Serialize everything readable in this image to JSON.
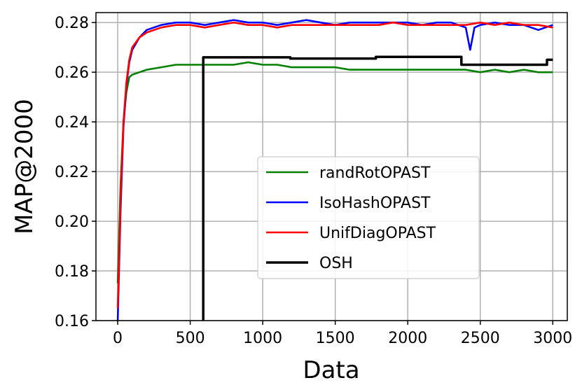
{
  "chart_data": {
    "type": "line",
    "title": "",
    "xlabel": "Data",
    "ylabel": "MAP@2000",
    "xlim": [
      -150,
      3100
    ],
    "ylim": [
      0.16,
      0.284
    ],
    "xticks": [
      0,
      500,
      1000,
      1500,
      2000,
      2500,
      3000
    ],
    "xtick_labels": [
      "0",
      "500",
      "1000",
      "1500",
      "2000",
      "2500",
      "3000"
    ],
    "yticks": [
      0.16,
      0.18,
      0.2,
      0.22,
      0.24,
      0.26,
      0.28
    ],
    "ytick_labels": [
      "0.16",
      "0.18",
      "0.20",
      "0.22",
      "0.24",
      "0.26",
      "0.28"
    ],
    "grid": true,
    "legend_position": "lower-right",
    "series": [
      {
        "name": "randRotOPAST",
        "color": "#008000",
        "x": [
          0,
          20,
          40,
          60,
          80,
          100,
          150,
          200,
          300,
          400,
          500,
          600,
          700,
          800,
          900,
          1000,
          1100,
          1200,
          1300,
          1400,
          1500,
          1600,
          1700,
          1800,
          1900,
          2000,
          2100,
          2200,
          2300,
          2400,
          2500,
          2600,
          2700,
          2800,
          2900,
          3000
        ],
        "y": [
          0.175,
          0.215,
          0.24,
          0.252,
          0.258,
          0.259,
          0.26,
          0.261,
          0.262,
          0.263,
          0.263,
          0.263,
          0.263,
          0.263,
          0.264,
          0.263,
          0.263,
          0.262,
          0.262,
          0.262,
          0.262,
          0.261,
          0.261,
          0.261,
          0.261,
          0.261,
          0.261,
          0.261,
          0.261,
          0.261,
          0.26,
          0.261,
          0.26,
          0.261,
          0.26,
          0.26
        ]
      },
      {
        "name": "IsoHashOPAST",
        "color": "#0000ff",
        "x": [
          0,
          20,
          40,
          60,
          80,
          100,
          150,
          200,
          300,
          400,
          500,
          600,
          700,
          800,
          900,
          1000,
          1100,
          1200,
          1300,
          1400,
          1500,
          1600,
          1700,
          1800,
          1900,
          2000,
          2100,
          2200,
          2300,
          2400,
          2430,
          2460,
          2500,
          2600,
          2700,
          2800,
          2900,
          3000
        ],
        "y": [
          0.16,
          0.205,
          0.238,
          0.255,
          0.264,
          0.269,
          0.274,
          0.277,
          0.279,
          0.28,
          0.28,
          0.279,
          0.28,
          0.281,
          0.28,
          0.28,
          0.279,
          0.28,
          0.281,
          0.28,
          0.279,
          0.28,
          0.28,
          0.28,
          0.28,
          0.28,
          0.279,
          0.28,
          0.28,
          0.278,
          0.269,
          0.278,
          0.279,
          0.28,
          0.279,
          0.279,
          0.277,
          0.279
        ]
      },
      {
        "name": "UnifDiagOPAST",
        "color": "#ff0000",
        "x": [
          0,
          20,
          40,
          60,
          80,
          100,
          150,
          200,
          300,
          400,
          500,
          600,
          700,
          800,
          900,
          1000,
          1100,
          1200,
          1300,
          1400,
          1500,
          1600,
          1700,
          1800,
          1900,
          2000,
          2100,
          2200,
          2300,
          2400,
          2500,
          2600,
          2700,
          2800,
          2900,
          3000
        ],
        "y": [
          0.165,
          0.21,
          0.24,
          0.256,
          0.265,
          0.27,
          0.274,
          0.276,
          0.278,
          0.279,
          0.279,
          0.278,
          0.279,
          0.28,
          0.279,
          0.279,
          0.278,
          0.279,
          0.279,
          0.279,
          0.279,
          0.279,
          0.279,
          0.279,
          0.28,
          0.279,
          0.279,
          0.279,
          0.279,
          0.279,
          0.28,
          0.279,
          0.28,
          0.279,
          0.279,
          0.278
        ]
      },
      {
        "name": "OSH",
        "color": "#000000",
        "x": [
          590,
          590,
          1190,
          1190,
          1780,
          1780,
          2370,
          2370,
          2960,
          2960,
          3000
        ],
        "y": [
          0.15,
          0.266,
          0.266,
          0.2655,
          0.2655,
          0.2662,
          0.2662,
          0.263,
          0.263,
          0.265,
          0.265
        ]
      }
    ]
  }
}
